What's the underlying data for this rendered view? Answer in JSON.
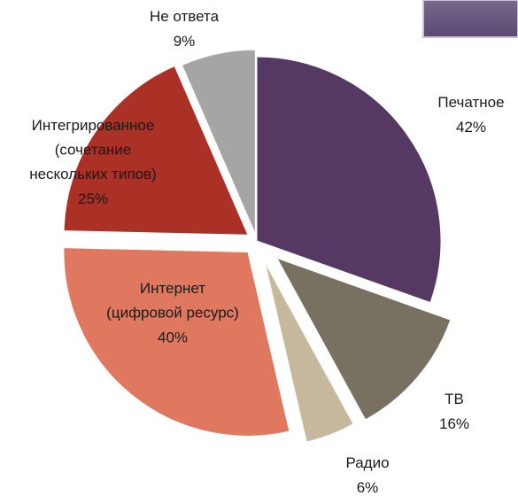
{
  "chart_data": {
    "type": "pie",
    "categories": [
      "Печатное",
      "ТВ",
      "Радио",
      "Интернет\n(цифровой ресурс)",
      "Интегрированное\n(сочетание\nнескольких типов)",
      "Не ответа"
    ],
    "values": [
      42,
      16,
      6,
      40,
      25,
      9
    ],
    "value_labels": [
      "42%",
      "16%",
      "6%",
      "40%",
      "25%",
      "9%"
    ],
    "colors": [
      "#553962",
      "#787060",
      "#c6b89c",
      "#e07860",
      "#ab3025",
      "#a5a5a3"
    ]
  }
}
